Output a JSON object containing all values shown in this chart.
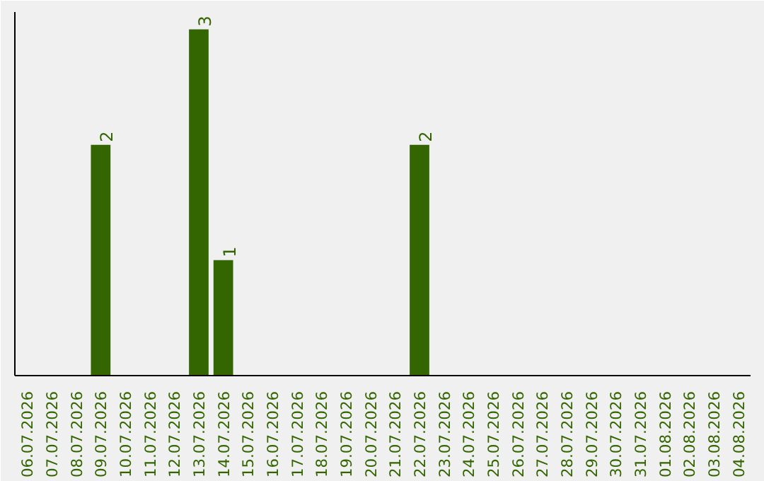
{
  "chart_data": {
    "type": "bar",
    "categories": [
      "06.07.2026",
      "07.07.2026",
      "08.07.2026",
      "09.07.2026",
      "10.07.2026",
      "11.07.2026",
      "12.07.2026",
      "13.07.2026",
      "14.07.2026",
      "15.07.2026",
      "16.07.2026",
      "17.07.2026",
      "18.07.2026",
      "19.07.2026",
      "20.07.2026",
      "21.07.2026",
      "22.07.2026",
      "23.07.2026",
      "24.07.2026",
      "25.07.2026",
      "26.07.2026",
      "27.07.2026",
      "28.07.2026",
      "29.07.2026",
      "30.07.2026",
      "31.07.2026",
      "01.08.2026",
      "02.08.2026",
      "03.08.2026",
      "04.08.2026"
    ],
    "values": [
      0,
      0,
      0,
      2,
      0,
      0,
      0,
      3,
      1,
      0,
      0,
      0,
      0,
      0,
      0,
      0,
      2,
      0,
      0,
      0,
      0,
      0,
      0,
      0,
      0,
      0,
      0,
      0,
      0,
      0
    ],
    "value_labels": [
      null,
      null,
      null,
      "2",
      null,
      null,
      null,
      "3",
      "1",
      null,
      null,
      null,
      null,
      null,
      null,
      null,
      "2",
      null,
      null,
      null,
      null,
      null,
      null,
      null,
      null,
      null,
      null,
      null,
      null,
      null
    ],
    "color": "#336600",
    "grid": false,
    "tick_labels": "x"
  }
}
